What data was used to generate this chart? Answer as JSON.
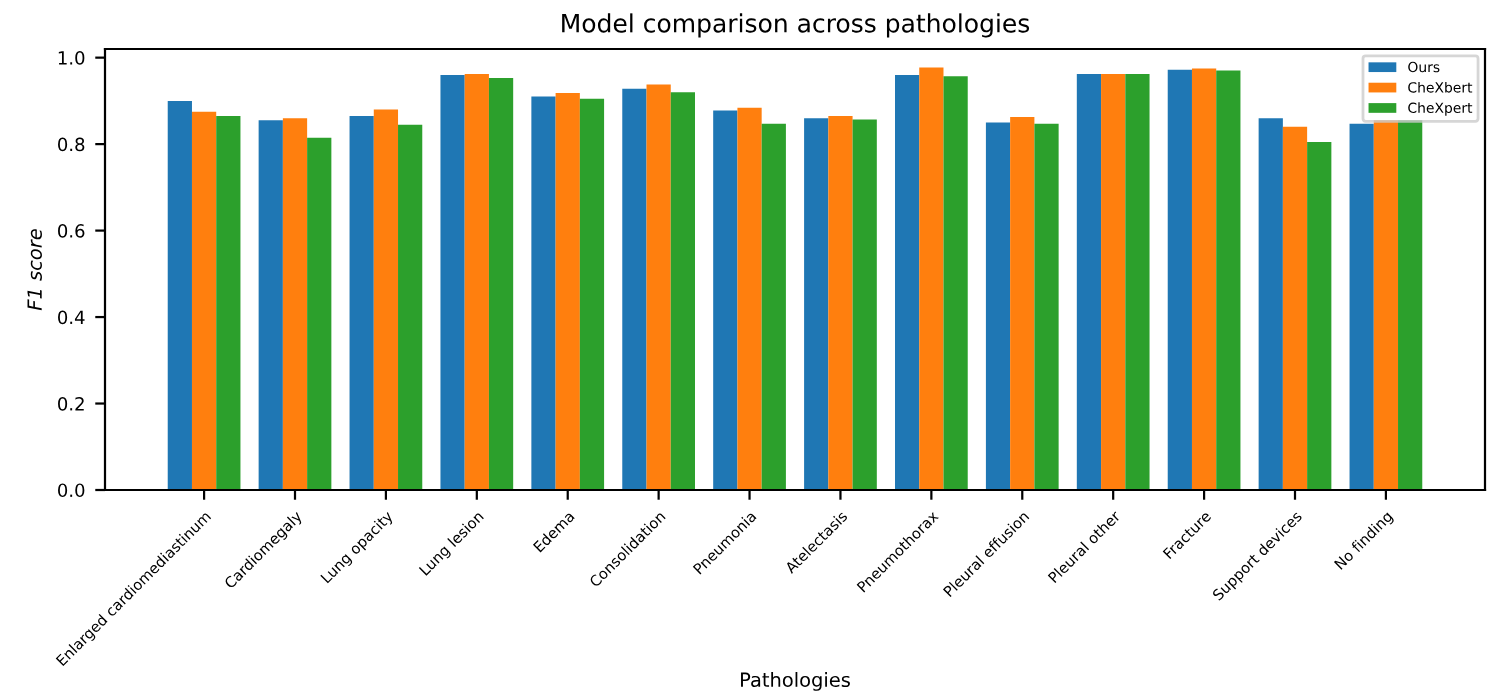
{
  "chart_data": {
    "type": "bar",
    "title": "Model comparison across pathologies",
    "xlabel": "Pathologies",
    "ylabel": "F1 score",
    "categories": [
      "Enlarged cardiomediastinum",
      "Cardiomegaly",
      "Lung opacity",
      "Lung lesion",
      "Edema",
      "Consolidation",
      "Pneumonia",
      "Atelectasis",
      "Pneumothorax",
      "Pleural effusion",
      "Pleural other",
      "Fracture",
      "Support devices",
      "No finding"
    ],
    "series": [
      {
        "name": "Ours",
        "color": "#1f77b4",
        "values": [
          0.9,
          0.855,
          0.865,
          0.96,
          0.91,
          0.928,
          0.878,
          0.86,
          0.96,
          0.85,
          0.962,
          0.972,
          0.86,
          0.847
        ]
      },
      {
        "name": "CheXbert",
        "color": "#ff7f0e",
        "values": [
          0.875,
          0.86,
          0.88,
          0.962,
          0.918,
          0.938,
          0.884,
          0.865,
          0.977,
          0.863,
          0.962,
          0.975,
          0.84,
          0.855
        ]
      },
      {
        "name": "CheXpert",
        "color": "#2ca02c",
        "values": [
          0.865,
          0.815,
          0.845,
          0.953,
          0.905,
          0.92,
          0.847,
          0.857,
          0.957,
          0.847,
          0.962,
          0.97,
          0.805,
          0.855
        ]
      }
    ],
    "ylim": [
      0,
      1.02
    ],
    "yticks": [
      {
        "value": 0,
        "label": "0.0"
      },
      0.2,
      0.4,
      0.6,
      0.8,
      {
        "value": 1,
        "label": "1.0"
      }
    ],
    "legend": "top right",
    "grid": false
  }
}
